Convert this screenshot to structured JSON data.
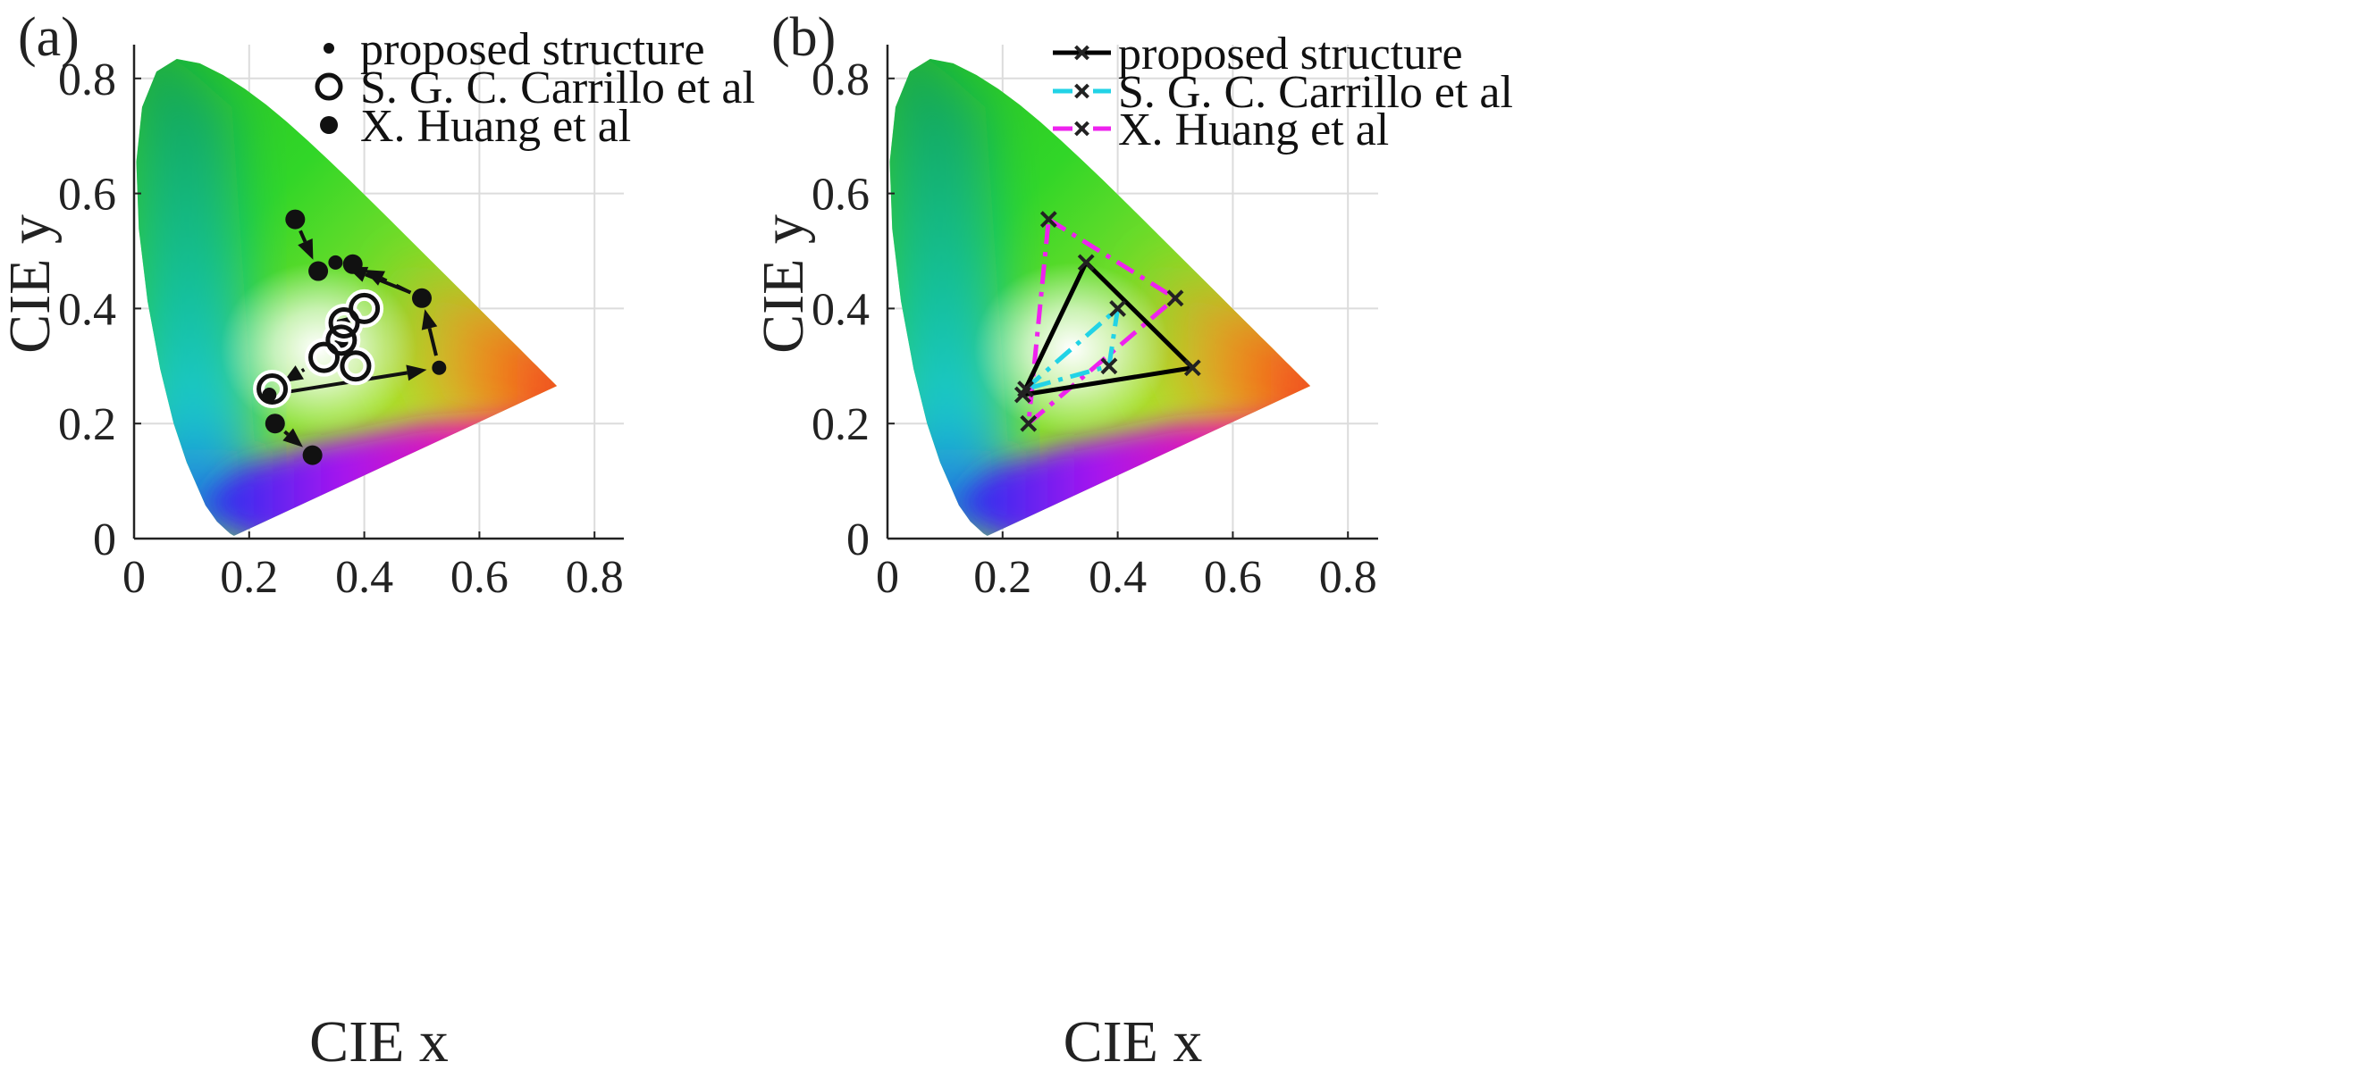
{
  "figure": {
    "type": "cie_chromaticity_comparison"
  },
  "chart_data": [
    {
      "panel": "(a)",
      "type": "scatter",
      "xlabel": "CIE x",
      "ylabel": "CIE y",
      "xlim": [
        0,
        0.85
      ],
      "ylim": [
        0,
        0.85
      ],
      "xticks": [
        0,
        0.2,
        0.4,
        0.6,
        0.8
      ],
      "yticks": [
        0,
        0.2,
        0.4,
        0.6,
        0.8
      ],
      "xtick_labels": [
        "0",
        "0.2",
        "0.4",
        "0.6",
        "0.8"
      ],
      "ytick_labels": [
        "0",
        "0.2",
        "0.4",
        "0.6",
        "0.8"
      ],
      "grid": true,
      "legend_position": "top-right",
      "series": [
        {
          "name": "proposed structure",
          "marker": "dot",
          "line": "solid",
          "points": [
            [
              0.235,
              0.25
            ],
            [
              0.53,
              0.297
            ],
            [
              0.5,
              0.42
            ],
            [
              0.35,
              0.48
            ]
          ]
        },
        {
          "name": "S. G. C. Carrillo et al",
          "marker": "open-circle",
          "line": "dotted",
          "points": [
            [
              0.33,
              0.315
            ],
            [
              0.365,
              0.375
            ],
            [
              0.36,
              0.345
            ],
            [
              0.4,
              0.4
            ],
            [
              0.385,
              0.3
            ],
            [
              0.24,
              0.26
            ]
          ]
        },
        {
          "name": "X. Huang et al",
          "marker": "filled-circle",
          "line": "dashed",
          "points": [
            [
              0.28,
              0.555
            ],
            [
              0.32,
              0.465
            ],
            [
              0.38,
              0.477
            ],
            [
              0.5,
              0.418
            ],
            [
              0.245,
              0.2
            ],
            [
              0.31,
              0.145
            ]
          ]
        }
      ]
    },
    {
      "panel": "(b)",
      "type": "line",
      "xlabel": "CIE x",
      "ylabel": "CIE y",
      "xlim": [
        0,
        0.85
      ],
      "ylim": [
        0,
        0.85
      ],
      "xticks": [
        0,
        0.2,
        0.4,
        0.6,
        0.8
      ],
      "yticks": [
        0,
        0.2,
        0.4,
        0.6,
        0.8
      ],
      "xtick_labels": [
        "0",
        "0.2",
        "0.4",
        "0.6",
        "0.8"
      ],
      "ytick_labels": [
        "0",
        "0.2",
        "0.4",
        "0.6",
        "0.8"
      ],
      "grid": true,
      "legend_position": "top-right",
      "series": [
        {
          "name": "proposed structure",
          "color": "#000000",
          "style": "solid",
          "marker": "x",
          "points": [
            [
              0.235,
              0.25
            ],
            [
              0.53,
              0.297
            ],
            [
              0.345,
              0.48
            ]
          ]
        },
        {
          "name": "S. G. C. Carrillo et al",
          "color": "#22d3e6",
          "style": "dash-dot",
          "marker": "x",
          "points": [
            [
              0.24,
              0.26
            ],
            [
              0.4,
              0.4
            ],
            [
              0.385,
              0.3
            ]
          ]
        },
        {
          "name": "X. Huang et al",
          "color": "#ee22ee",
          "style": "dash-dot",
          "marker": "x",
          "points": [
            [
              0.28,
              0.555
            ],
            [
              0.5,
              0.418
            ],
            [
              0.245,
              0.2
            ]
          ]
        }
      ]
    }
  ]
}
